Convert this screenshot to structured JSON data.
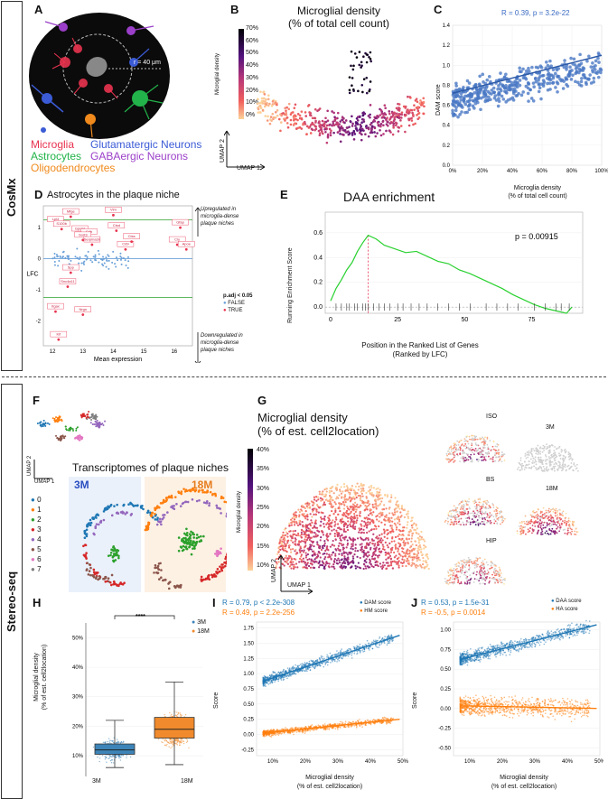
{
  "sections": {
    "top": "CosMx",
    "bottom": "Stereo-seq"
  },
  "panels": [
    "A",
    "B",
    "C",
    "D",
    "E",
    "F",
    "G",
    "H",
    "I",
    "J"
  ],
  "A": {
    "radius_label": "r = 40 μm",
    "legend": [
      {
        "label": "Microglia",
        "color": "#e8334f"
      },
      {
        "label": "Glutamatergic Neurons",
        "color": "#3b5bd6"
      },
      {
        "label": "Astrocytes",
        "color": "#22b34a"
      },
      {
        "label": "GABAergic Neurons",
        "color": "#9b3fc9"
      },
      {
        "label": "Oligodendrocytes",
        "color": "#f08a1c"
      }
    ]
  },
  "B": {
    "title_line1": "Microglial density",
    "title_line2": "(% of total cell count)",
    "colorbar_label": "Microglial density",
    "colorbar_ticks": [
      "70%",
      "60%",
      "50%",
      "40%",
      "30%",
      "20%",
      "10%",
      "0%"
    ],
    "axis_x": "UMAP 1",
    "axis_y": "UMAP 2"
  },
  "C": {
    "stat": "R = 0.39, p = 3.2e-22",
    "ylabel": "DAM score",
    "xlabel_line1": "Microglia density",
    "xlabel_line2": "(% of total cell count)",
    "yticks": [
      "1.4",
      "1.2",
      "1.0",
      "0.8",
      "0.6",
      "0.4",
      "0.2",
      "0.0"
    ],
    "xticks": [
      "0%",
      "20%",
      "40%",
      "60%",
      "80%",
      "100%"
    ]
  },
  "D": {
    "title": "Astrocytes in the plaque niche",
    "ylabel": "LFC",
    "xlabel": "Mean expression",
    "xticks": [
      "12",
      "13",
      "14",
      "15",
      "16"
    ],
    "yticks": [
      "1",
      "0",
      "-1",
      "-2"
    ],
    "up_note_line1": "Upregulated in",
    "up_note_line2": "microglia-dense",
    "up_note_line3": "plaque niches",
    "down_note_line1": "Downregulated in",
    "down_note_line2": "microglia-dense",
    "down_note_line3": "plaque niches",
    "legend_title": "p.adj < 0.05",
    "legend_false": "FALSE",
    "legend_true": "TRUE",
    "genes": [
      "Lpl4",
      "Mfge",
      "Vim",
      "S100b",
      "Gpr34",
      "C4b",
      "Sort3",
      "Ctsd",
      "Serpina3n",
      "Cd9",
      "Clu",
      "Apoe",
      "Gfap",
      "Ctss",
      "Spp",
      "Itgax",
      "Snc4a11",
      "Nrgn",
      "Kif"
    ]
  },
  "E": {
    "title": "DAA enrichment",
    "pvalue": "p = 0.00915",
    "ylabel": "Running Enrichment Score",
    "xlabel_line1": "Position in the Ranked List of Genes",
    "xlabel_line2": "(Ranked by LFC)",
    "yticks": [
      "0.6",
      "0.4",
      "0.2",
      "0.0"
    ],
    "xticks": [
      "0",
      "25",
      "50",
      "75"
    ]
  },
  "F": {
    "title": "Transcriptomes of plaque niches",
    "group_left": "3M",
    "group_right": "18M",
    "axis_x": "UMAP 1",
    "axis_y": "UMAP 2",
    "clusters": [
      {
        "label": "0",
        "color": "#1f77b4"
      },
      {
        "label": "1",
        "color": "#ff7f0e"
      },
      {
        "label": "2",
        "color": "#2ca02c"
      },
      {
        "label": "3",
        "color": "#d62728"
      },
      {
        "label": "4",
        "color": "#9467bd"
      },
      {
        "label": "5",
        "color": "#8c564b"
      },
      {
        "label": "6",
        "color": "#e377c2"
      },
      {
        "label": "7",
        "color": "#7f7f7f"
      }
    ]
  },
  "G": {
    "title_line1": "Microglial density",
    "title_line2": "(% of est. cell2location)",
    "colorbar_label": "Microglial density",
    "colorbar_ticks": [
      "40%",
      "35%",
      "30%",
      "25%",
      "20%",
      "15%",
      "10%"
    ],
    "axis_x": "UMAP 1",
    "axis_y": "UMAP 2",
    "small_labels": [
      "ISO",
      "3M",
      "BS",
      "18M",
      "HIP"
    ]
  },
  "H": {
    "ylabel_line1": "Microglial density",
    "ylabel_line2": "(% of est. cell2location)",
    "yticks": [
      "50%",
      "40%",
      "30%",
      "20%",
      "10%"
    ],
    "groups": [
      "3M",
      "18M"
    ],
    "legend": [
      {
        "label": "3M",
        "color": "#3d84b8"
      },
      {
        "label": "18M",
        "color": "#f08a2c"
      }
    ],
    "significance": "****"
  },
  "I": {
    "stat1": "R = 0.79, p < 2.2e-308",
    "stat2": "R = 0.49, p = 2.2e-256",
    "legend": [
      {
        "label": "DAM score",
        "color": "#1f77b4"
      },
      {
        "label": "HM score",
        "color": "#ff7f0e"
      }
    ],
    "ylabel": "Score",
    "xlabel_line1": "Microglial density",
    "xlabel_line2": "(% of est. cell2location)",
    "yticks": [
      "1.75",
      "1.50",
      "1.25",
      "1.00",
      "0.75",
      "0.50",
      "0.25",
      "0.00",
      "-0.25"
    ],
    "xticks": [
      "10%",
      "20%",
      "30%",
      "40%",
      "50%"
    ]
  },
  "J": {
    "stat1": "R = 0.53, p = 1.5e-31",
    "stat2": "R = -0.5, p = 0.0014",
    "legend": [
      {
        "label": "DAA score",
        "color": "#1f77b4"
      },
      {
        "label": "HA score",
        "color": "#ff7f0e"
      }
    ],
    "ylabel": "Score",
    "xlabel_line1": "Microglial density",
    "xlabel_line2": "(% of est. cell2location)",
    "yticks": [
      "1.00",
      "0.75",
      "0.50",
      "0.25",
      "0.00",
      "-0.25",
      "-0.50"
    ],
    "xticks": [
      "10%",
      "20%",
      "30%",
      "40%",
      "50%"
    ]
  }
}
